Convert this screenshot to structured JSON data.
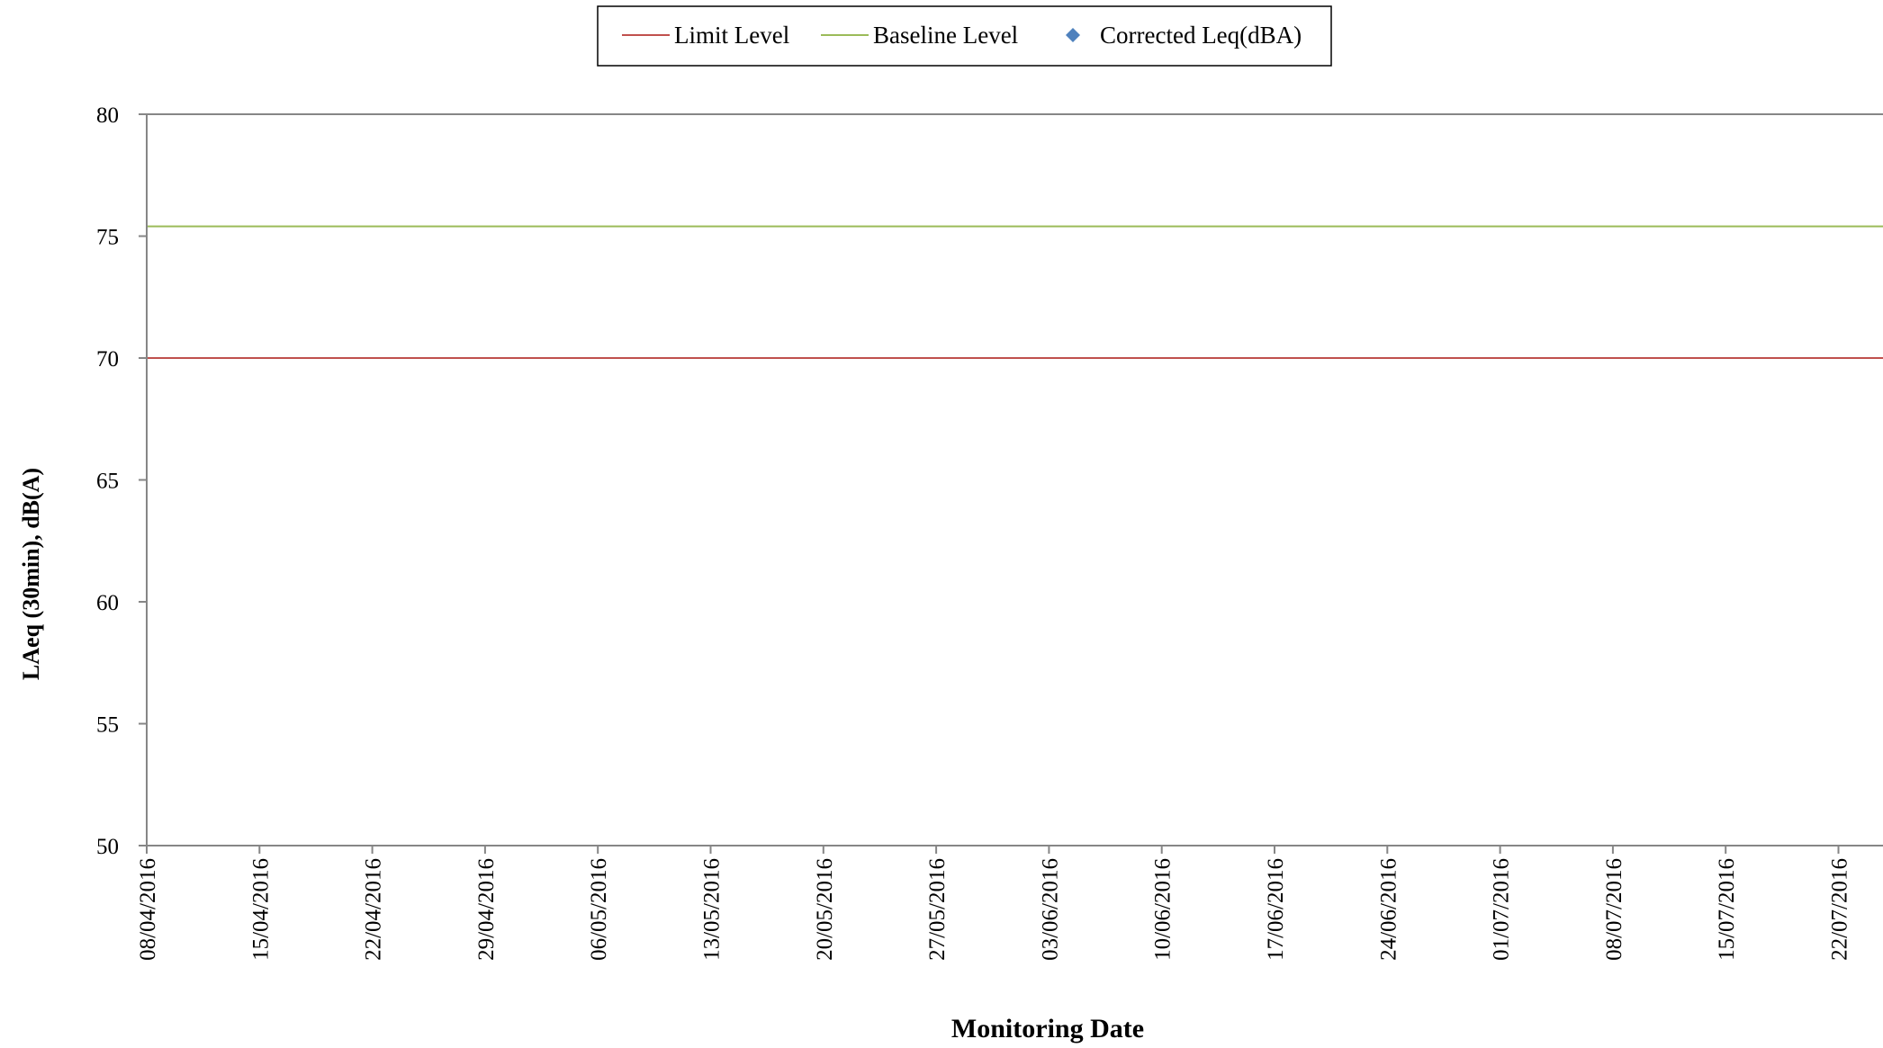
{
  "chart_data": {
    "type": "line",
    "title": "",
    "xlabel": "Monitoring Date",
    "ylabel": "LAeq (30min), dB(A)",
    "xlim": [
      "08/04/2016",
      "26/07/2016"
    ],
    "ylim": [
      50,
      80
    ],
    "y_ticks": [
      50,
      55,
      60,
      65,
      70,
      75,
      80
    ],
    "x_ticks": [
      "08/04/2016",
      "15/04/2016",
      "22/04/2016",
      "29/04/2016",
      "06/05/2016",
      "13/05/2016",
      "20/05/2016",
      "27/05/2016",
      "03/06/2016",
      "10/06/2016",
      "17/06/2016",
      "24/06/2016",
      "01/07/2016",
      "08/07/2016",
      "15/07/2016",
      "22/07/2016"
    ],
    "grid": false,
    "legend_position": "top",
    "series": [
      {
        "name": "Limit Level",
        "color": "#c0504d",
        "marker": "line",
        "points": [
          [
            "08/04/2016",
            70
          ],
          [
            "26/07/2016",
            70
          ]
        ]
      },
      {
        "name": "Baseline Level",
        "color": "#9bbb59",
        "marker": "line",
        "points": [
          [
            "08/04/2016",
            75.4
          ],
          [
            "26/07/2016",
            75.4
          ]
        ]
      },
      {
        "name": "Corrected Leq(dBA)",
        "color": "#4f81bd",
        "marker": "diamond",
        "points": []
      }
    ]
  }
}
